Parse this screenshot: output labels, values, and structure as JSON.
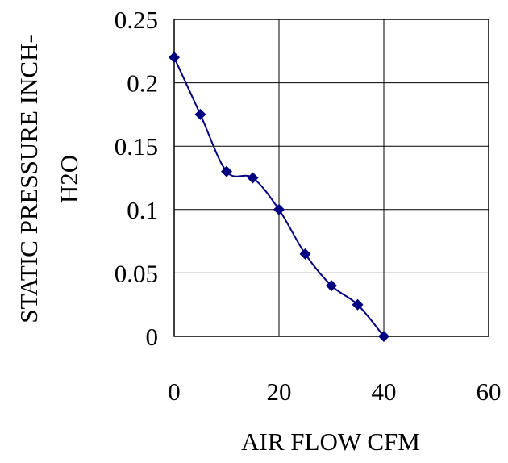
{
  "chart_data": {
    "type": "line",
    "title": "",
    "xlabel": "AIR FLOW CFM",
    "ylabel_line1": "STATIC PRESSURE INCH-",
    "ylabel_line2": "H2O",
    "xlim": [
      0,
      60
    ],
    "ylim": [
      0,
      0.25
    ],
    "x_ticks": [
      0,
      20,
      40,
      60
    ],
    "x_tick_labels": [
      "0",
      "20",
      "40",
      "60"
    ],
    "y_ticks": [
      0,
      0.05,
      0.1,
      0.15,
      0.2,
      0.25
    ],
    "y_tick_labels": [
      "0",
      "0.05",
      "0.1",
      "0.15",
      "0.2",
      "0.25"
    ],
    "grid": true,
    "legend": "none",
    "series": [
      {
        "color": "#000080",
        "marker": "diamond",
        "smooth": true,
        "x": [
          0,
          5,
          10,
          15,
          20,
          25,
          30,
          35,
          40
        ],
        "y": [
          0.22,
          0.175,
          0.13,
          0.125,
          0.1,
          0.065,
          0.04,
          0.025,
          0
        ]
      }
    ]
  }
}
